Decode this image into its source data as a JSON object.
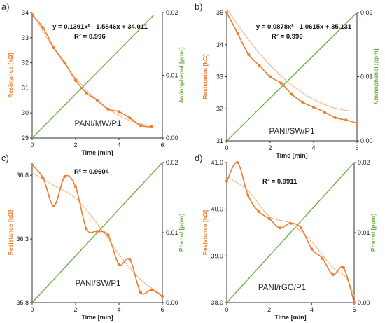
{
  "colors": {
    "resistance": "#ED7D31",
    "analyte": "#70AD47",
    "trend": "#F4B183",
    "axis": "#333333"
  },
  "chart_data": [
    {
      "type": "line",
      "panel_label": "a)",
      "sample": "PANI/MW/P1",
      "equation": "y = 0.1391x² - 1.5846x + 34.011",
      "r2_text": "R² = 0.996",
      "xlabel": "Time [min]",
      "ylabel_left": "Resistance [kΩ]",
      "ylabel_right": "Aminophenol [ppm]",
      "xlim": [
        0,
        6
      ],
      "ylim_left": [
        29,
        34
      ],
      "ylim_right": [
        0,
        0.02
      ],
      "x_ticks": [
        0,
        2,
        4,
        6
      ],
      "x_tick_labels": [
        "0",
        "2",
        "4",
        "6"
      ],
      "yl_ticks": [
        29,
        30,
        31,
        32,
        33,
        34
      ],
      "yl_tick_labels": [
        "29",
        "30",
        "31",
        "32",
        "33",
        "34"
      ],
      "yr_ticks": [
        0,
        0.01,
        0.02
      ],
      "yr_tick_labels": [
        "0.00",
        "0.01",
        "0.02"
      ],
      "series": [
        {
          "name": "Resistance",
          "axis": "left",
          "x": [
            0,
            0.5,
            1,
            1.5,
            2,
            2.5,
            3,
            3.5,
            4,
            4.5,
            5,
            5.5
          ],
          "y": [
            33.9,
            33.4,
            32.6,
            32.0,
            31.3,
            30.8,
            30.5,
            30.15,
            30.05,
            29.8,
            29.5,
            29.45
          ]
        },
        {
          "name": "Aminophenol",
          "axis": "right",
          "x": [
            0,
            5.6
          ],
          "y": [
            0,
            0.0196
          ]
        }
      ],
      "trend": {
        "kind": "poly2",
        "coef": [
          0.1391,
          -1.5846,
          34.011
        ],
        "x_range": [
          0,
          5.5
        ]
      }
    },
    {
      "type": "line",
      "panel_label": "b)",
      "sample": "PANI/SW/P1",
      "equation": "y = 0.0878x² - 1.0615x + 35.131",
      "r2_text": "R² = 0.996",
      "xlabel": "Time [min]",
      "ylabel_left": "Resistance [kΩ]",
      "ylabel_right": "Aminophenol [ppm]",
      "xlim": [
        0,
        6
      ],
      "ylim_left": [
        31,
        35
      ],
      "ylim_right": [
        0,
        0.02
      ],
      "x_ticks": [
        0,
        2,
        4,
        6
      ],
      "x_tick_labels": [
        "0",
        "2",
        "4",
        "6"
      ],
      "yl_ticks": [
        31,
        32,
        33,
        34,
        35
      ],
      "yl_tick_labels": [
        "31",
        "32",
        "33",
        "34",
        "35"
      ],
      "yr_ticks": [
        0,
        0.01,
        0.02
      ],
      "yr_tick_labels": [
        "0.00",
        "0.01",
        "0.02"
      ],
      "series": [
        {
          "name": "Resistance",
          "axis": "left",
          "x": [
            0,
            0.5,
            1,
            1.5,
            2,
            2.5,
            3,
            3.5,
            4,
            4.5,
            5,
            5.5,
            6
          ],
          "y": [
            35.0,
            34.35,
            33.7,
            33.35,
            33.0,
            32.8,
            32.45,
            32.2,
            32.05,
            31.9,
            31.72,
            31.65,
            31.55
          ]
        },
        {
          "name": "Aminophenol",
          "axis": "right",
          "x": [
            0,
            6
          ],
          "y": [
            0,
            0.02
          ]
        }
      ],
      "trend": {
        "kind": "poly2",
        "coef": [
          0.0878,
          -1.0615,
          35.131
        ],
        "x_range": [
          0,
          6
        ]
      }
    },
    {
      "type": "line",
      "panel_label": "c)",
      "sample": "PANI/SW/P1",
      "equation": "",
      "r2_text": "R² = 0.9604",
      "xlabel": "Time [min]",
      "ylabel_left": "Resistance [kΩ]",
      "ylabel_right": "Phenol [ppm]",
      "xlim": [
        0,
        6
      ],
      "ylim_left": [
        35.8,
        36.9
      ],
      "ylim_right": [
        0,
        0.02
      ],
      "x_ticks": [
        0,
        2,
        4,
        6
      ],
      "x_tick_labels": [
        "0",
        "2",
        "4",
        "6"
      ],
      "yl_ticks": [
        35.8,
        36.3,
        36.8
      ],
      "yl_tick_labels": [
        "35.8",
        "36.3",
        "36.8"
      ],
      "yr_ticks": [
        0,
        0.01,
        0.02
      ],
      "yr_tick_labels": [
        "0.00",
        "0.01",
        "0.02"
      ],
      "series": [
        {
          "name": "Resistance",
          "axis": "left",
          "x": [
            0,
            0.5,
            1,
            1.5,
            2,
            2.5,
            3,
            3.5,
            4,
            4.5,
            5,
            5.5,
            6
          ],
          "y": [
            36.88,
            36.78,
            36.56,
            36.79,
            36.71,
            36.38,
            36.36,
            36.33,
            36.1,
            36.14,
            35.88,
            35.9,
            35.85
          ]
        },
        {
          "name": "Phenol",
          "axis": "right",
          "x": [
            0,
            6
          ],
          "y": [
            0,
            0.02
          ]
        }
      ],
      "trend": {
        "kind": "points",
        "x": [
          0,
          1,
          2,
          3,
          4,
          5,
          6
        ],
        "y": [
          36.82,
          36.72,
          36.62,
          36.42,
          36.18,
          35.98,
          35.86
        ]
      }
    },
    {
      "type": "line",
      "panel_label": "d)",
      "sample": "PANI/rGO/P1",
      "equation": "",
      "r2_text": "R² = 0.9911",
      "xlabel": "Time [min]",
      "ylabel_left": "Resistance [kΩ]",
      "ylabel_right": "Phenol [ppm]",
      "xlim": [
        0,
        6
      ],
      "ylim_left": [
        38,
        41
      ],
      "ylim_right": [
        0,
        0.02
      ],
      "x_ticks": [
        0,
        2,
        4,
        6
      ],
      "x_tick_labels": [
        "0",
        "2",
        "4",
        "6"
      ],
      "yl_ticks": [
        38,
        39,
        40,
        41
      ],
      "yl_tick_labels": [
        "38.0",
        "39.0",
        "40.0",
        "41.0"
      ],
      "yr_ticks": [
        0,
        0.01,
        0.02
      ],
      "yr_tick_labels": [
        "0.00",
        "0.01",
        "0.02"
      ],
      "series": [
        {
          "name": "Resistance",
          "axis": "left",
          "x": [
            0,
            0.5,
            1,
            1.5,
            2,
            2.5,
            3,
            3.5,
            4,
            4.5,
            5,
            5.5,
            6
          ],
          "y": [
            40.6,
            41.0,
            40.3,
            39.95,
            39.8,
            39.6,
            39.7,
            39.6,
            39.15,
            38.95,
            38.6,
            38.75,
            38.0
          ]
        },
        {
          "name": "Phenol",
          "axis": "right",
          "x": [
            0,
            6
          ],
          "y": [
            0,
            0.02
          ]
        }
      ],
      "trend": {
        "kind": "points",
        "x": [
          0,
          1,
          2,
          3,
          4,
          5,
          5.6,
          6
        ],
        "y": [
          40.7,
          40.4,
          39.85,
          39.7,
          39.3,
          38.75,
          38.55,
          38.15
        ]
      }
    }
  ]
}
